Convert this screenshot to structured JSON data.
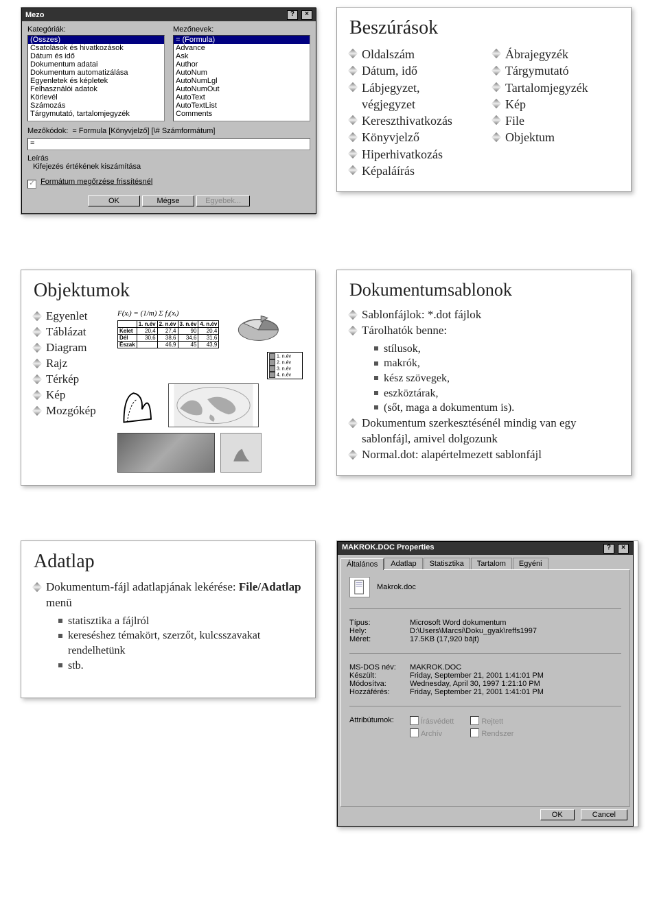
{
  "row1": {
    "dialog": {
      "title": "Mezo",
      "lblCategories": "Kategóriák:",
      "lblFieldNames": "Mezőnevek:",
      "categories": [
        "(Összes)",
        "Csatolások és hivatkozások",
        "Dátum és idő",
        "Dokumentum adatai",
        "Dokumentum automatizálása",
        "Egyenletek és képletek",
        "Felhasználói adatok",
        "Körlevél",
        "Számozás",
        "Tárgymutató, tartalomjegyzék"
      ],
      "catSelected": "(Összes)",
      "fieldNames": [
        "= (Formula)",
        "Advance",
        "Ask",
        "Author",
        "AutoNum",
        "AutoNumLgl",
        "AutoNumOut",
        "AutoText",
        "AutoTextList",
        "Comments"
      ],
      "fnSelected": "= (Formula)",
      "lblFieldCodes": "Mezőkódok:",
      "fieldCodesValue": "= Formula [Könyvjelző] [\\# Számformátum]",
      "eqValue": "=",
      "lblDesc": "Leírás",
      "descText": "Kifejezés értékének kiszámítása",
      "chkKeepFormat": "Formátum megőrzése frissítésnél",
      "btnOk": "OK",
      "btnCancel": "Mégse",
      "btnOptions": "Egyebek..."
    },
    "slide": {
      "title": "Beszúrások",
      "colA": [
        "Oldalszám",
        "Dátum, idő",
        "Lábjegyzet, végjegyzet",
        "Kereszthivatkozás",
        "Könyvjelző",
        "Hiperhivatkozás",
        "Képaláírás"
      ],
      "colB": [
        "Ábrajegyzék",
        "Tárgymutató",
        "Tartalomjegyzék",
        "Kép",
        "File",
        "Objektum"
      ]
    }
  },
  "row2": {
    "left": {
      "title": "Objektumok",
      "items": [
        "Egyenlet",
        "Táblázat",
        "Diagram",
        "Rajz",
        "Térkép",
        "Kép",
        "Mozgókép"
      ],
      "formula": "F(xᵢ) = (1/m) Σ fⱼ(xᵢ)",
      "tbl": {
        "head": [
          "",
          "1. n.év",
          "2. n.év",
          "3. n.év",
          "4. n.év"
        ],
        "rows": [
          [
            "Kelet",
            "20,4",
            "27,4",
            "90",
            "20,4"
          ],
          [
            "Dél",
            "30,6",
            "38,6",
            "34,6",
            "31,6"
          ],
          [
            "Észak",
            "",
            "46,9",
            "45",
            "43,9"
          ]
        ]
      },
      "legend": [
        "1. n.év",
        "2. n.év",
        "3. n.év",
        "4. n.év"
      ]
    },
    "right": {
      "title": "Dokumentumsablonok",
      "b1": "Sablonfájlok: *.dot fájlok",
      "b2": "Tárolhatók benne:",
      "sub": [
        "stílusok,",
        "makrók,",
        "kész szövegek,",
        "eszköztárak,",
        "(sőt, maga a dokumentum is)."
      ],
      "b3": "Dokumentum szerkesztésénél mindig van egy sablonfájl, amivel dolgozunk",
      "b4": "Normal.dot: alapértelmezett sablonfájl"
    }
  },
  "row3": {
    "left": {
      "title": "Adatlap",
      "b1": "Dokumentum-fájl adatlapjának lekérése: ",
      "b1b": "File/Adatlap",
      "b1c": " menü",
      "sub": [
        "statisztika a fájlról",
        "kereséshez témakört, szerzőt, kulcsszavakat rendelhetünk",
        "stb."
      ]
    },
    "prop": {
      "title": "MAKROK.DOC Properties",
      "tabs": [
        "Általános",
        "Adatlap",
        "Statisztika",
        "Tartalom",
        "Egyéni"
      ],
      "docname": "Makrok.doc",
      "kvs": [
        [
          "Típus:",
          "Microsoft Word dokumentum"
        ],
        [
          "Hely:",
          "D:\\Users\\Marcsi\\Doku_gyak\\reffs1997"
        ],
        [
          "Méret:",
          "17.5KB (17,920 bájt)"
        ]
      ],
      "kvs2": [
        [
          "MS-DOS név:",
          "MAKROK.DOC"
        ],
        [
          "Készült:",
          "Friday, September 21, 2001 1:41:01 PM"
        ],
        [
          "Módosítva:",
          "Wednesday, April 30, 1997 1:21:10 PM"
        ],
        [
          "Hozzáférés:",
          "Friday, September 21, 2001 1:41:01 PM"
        ]
      ],
      "attrLabel": "Attribútumok:",
      "attrs": [
        "Írásvédett",
        "Rejtett",
        "Archív",
        "Rendszer"
      ],
      "btnOk": "OK",
      "btnCancel": "Cancel"
    }
  }
}
